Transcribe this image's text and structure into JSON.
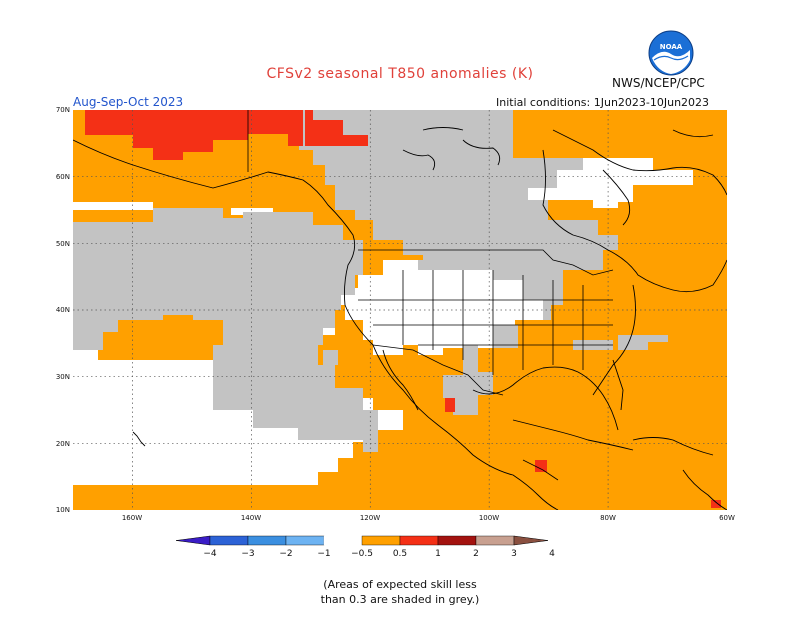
{
  "header": {
    "title": "CFSv2 seasonal T850 anomalies (K)",
    "agency": "NWS/NCEP/CPC",
    "period": "Aug-Sep-Oct 2023",
    "initial_conditions": "Initial conditions: 1Jun2023-10Jun2023",
    "logo_text": "NOAA"
  },
  "map": {
    "lat_labels": [
      "70N",
      "60N",
      "50N",
      "40N",
      "30N",
      "20N",
      "10N"
    ],
    "lon_labels": [
      "160W",
      "140W",
      "120W",
      "100W",
      "80W",
      "60W"
    ],
    "lat_range": [
      10,
      70
    ],
    "lon_range": [
      -170,
      -60
    ],
    "colors": {
      "grey": "#c3c3c3",
      "orange": "#ffa000",
      "red_orange": "#f43016",
      "white": "#ffffff"
    }
  },
  "legend": {
    "labels": [
      "−4",
      "−3",
      "−2",
      "−1",
      "−0.5",
      "0.5",
      "1",
      "2",
      "3",
      "4"
    ],
    "colors": [
      "#3a1cc6",
      "#2c62d6",
      "#3b8fe0",
      "#6db3f2",
      "#ffffff",
      "#ffa000",
      "#f43016",
      "#a3120f",
      "#c8a090",
      "#8a5040"
    ]
  },
  "footnote": {
    "line1": "(Areas of expected skill less",
    "line2": "than 0.3 are shaded in grey.)"
  }
}
